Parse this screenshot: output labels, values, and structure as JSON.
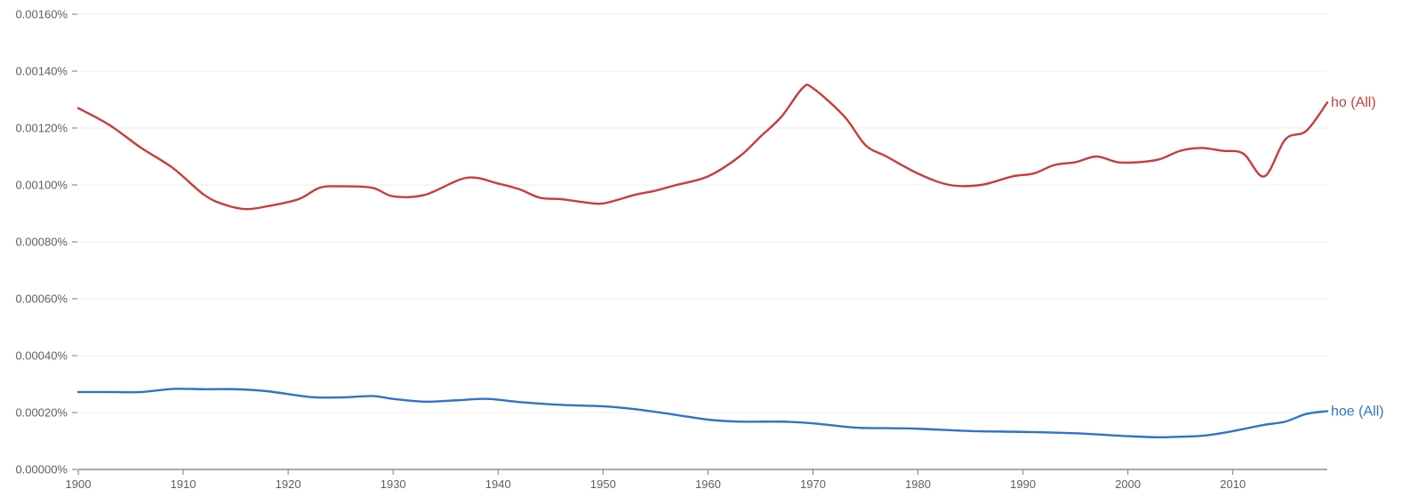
{
  "chart_data": {
    "type": "line",
    "title": "",
    "xlabel": "",
    "ylabel": "",
    "xlim": [
      1900,
      2019
    ],
    "ylim": [
      0,
      0.0016
    ],
    "grid": true,
    "legend": "inline-right",
    "y_ticks": [
      {
        "value": 0.0,
        "label": "0.00000%"
      },
      {
        "value": 0.0002,
        "label": "0.00020%"
      },
      {
        "value": 0.0004,
        "label": "0.00040%"
      },
      {
        "value": 0.0006,
        "label": "0.00060%"
      },
      {
        "value": 0.0008,
        "label": "0.00080%"
      },
      {
        "value": 0.001,
        "label": "0.00100%"
      },
      {
        "value": 0.0012,
        "label": "0.00120%"
      },
      {
        "value": 0.0014,
        "label": "0.00140%"
      },
      {
        "value": 0.0016,
        "label": "0.00160%"
      }
    ],
    "x_ticks": [
      {
        "value": 1900,
        "label": "1900"
      },
      {
        "value": 1910,
        "label": "1910"
      },
      {
        "value": 1920,
        "label": "1920"
      },
      {
        "value": 1930,
        "label": "1930"
      },
      {
        "value": 1940,
        "label": "1940"
      },
      {
        "value": 1950,
        "label": "1950"
      },
      {
        "value": 1960,
        "label": "1960"
      },
      {
        "value": 1970,
        "label": "1970"
      },
      {
        "value": 1980,
        "label": "1980"
      },
      {
        "value": 1990,
        "label": "1990"
      },
      {
        "value": 2000,
        "label": "2000"
      },
      {
        "value": 2010,
        "label": "2010"
      }
    ],
    "series": [
      {
        "name": "ho (All)",
        "color": "#c83c3c",
        "x": [
          1900,
          1903,
          1906,
          1909,
          1912,
          1914,
          1916,
          1918,
          1921,
          1923,
          1925,
          1928,
          1930,
          1933,
          1937,
          1940,
          1942,
          1944,
          1946,
          1948,
          1950,
          1953,
          1955,
          1957,
          1960,
          1963,
          1965,
          1967,
          1969,
          1970,
          1973,
          1975,
          1977,
          1980,
          1983,
          1986,
          1989,
          1991,
          1993,
          1995,
          1997,
          1999,
          2001,
          2003,
          2005,
          2007,
          2009,
          2011,
          2013,
          2015,
          2017,
          2019
        ],
        "y": [
          0.00127,
          0.00121,
          0.00113,
          0.00106,
          0.000965,
          0.00093,
          0.000915,
          0.000925,
          0.00095,
          0.00099,
          0.000995,
          0.00099,
          0.00096,
          0.000965,
          0.001025,
          0.001005,
          0.000985,
          0.000955,
          0.00095,
          0.00094,
          0.000935,
          0.000965,
          0.00098,
          0.001,
          0.00103,
          0.0011,
          0.00117,
          0.00124,
          0.00134,
          0.00134,
          0.00124,
          0.00114,
          0.0011,
          0.00104,
          0.001,
          0.001,
          0.00103,
          0.00104,
          0.00107,
          0.00108,
          0.0011,
          0.00108,
          0.00108,
          0.00109,
          0.00112,
          0.00113,
          0.00112,
          0.00111,
          0.00103,
          0.00116,
          0.00119,
          0.00129
        ]
      },
      {
        "name": "hoe (All)",
        "color": "#3074c6",
        "x": [
          1900,
          1903,
          1906,
          1909,
          1912,
          1915,
          1918,
          1922,
          1925,
          1928,
          1930,
          1933,
          1936,
          1939,
          1942,
          1946,
          1950,
          1953,
          1956,
          1960,
          1963,
          1967,
          1970,
          1974,
          1977,
          1980,
          1985,
          1990,
          1995,
          2000,
          2003,
          2005,
          2007,
          2009,
          2011,
          2013,
          2015,
          2017,
          2019
        ],
        "y": [
          0.000272,
          0.000272,
          0.000272,
          0.000283,
          0.000282,
          0.000282,
          0.000275,
          0.000255,
          0.000253,
          0.000258,
          0.000248,
          0.000238,
          0.000243,
          0.000248,
          0.000237,
          0.000227,
          0.000222,
          0.000212,
          0.000197,
          0.000175,
          0.000168,
          0.000168,
          0.000162,
          0.000147,
          0.000145,
          0.000143,
          0.000135,
          0.000132,
          0.000127,
          0.000117,
          0.000113,
          0.000115,
          0.000118,
          0.000128,
          0.000142,
          0.000157,
          0.000168,
          0.000195,
          0.000205
        ]
      }
    ]
  }
}
